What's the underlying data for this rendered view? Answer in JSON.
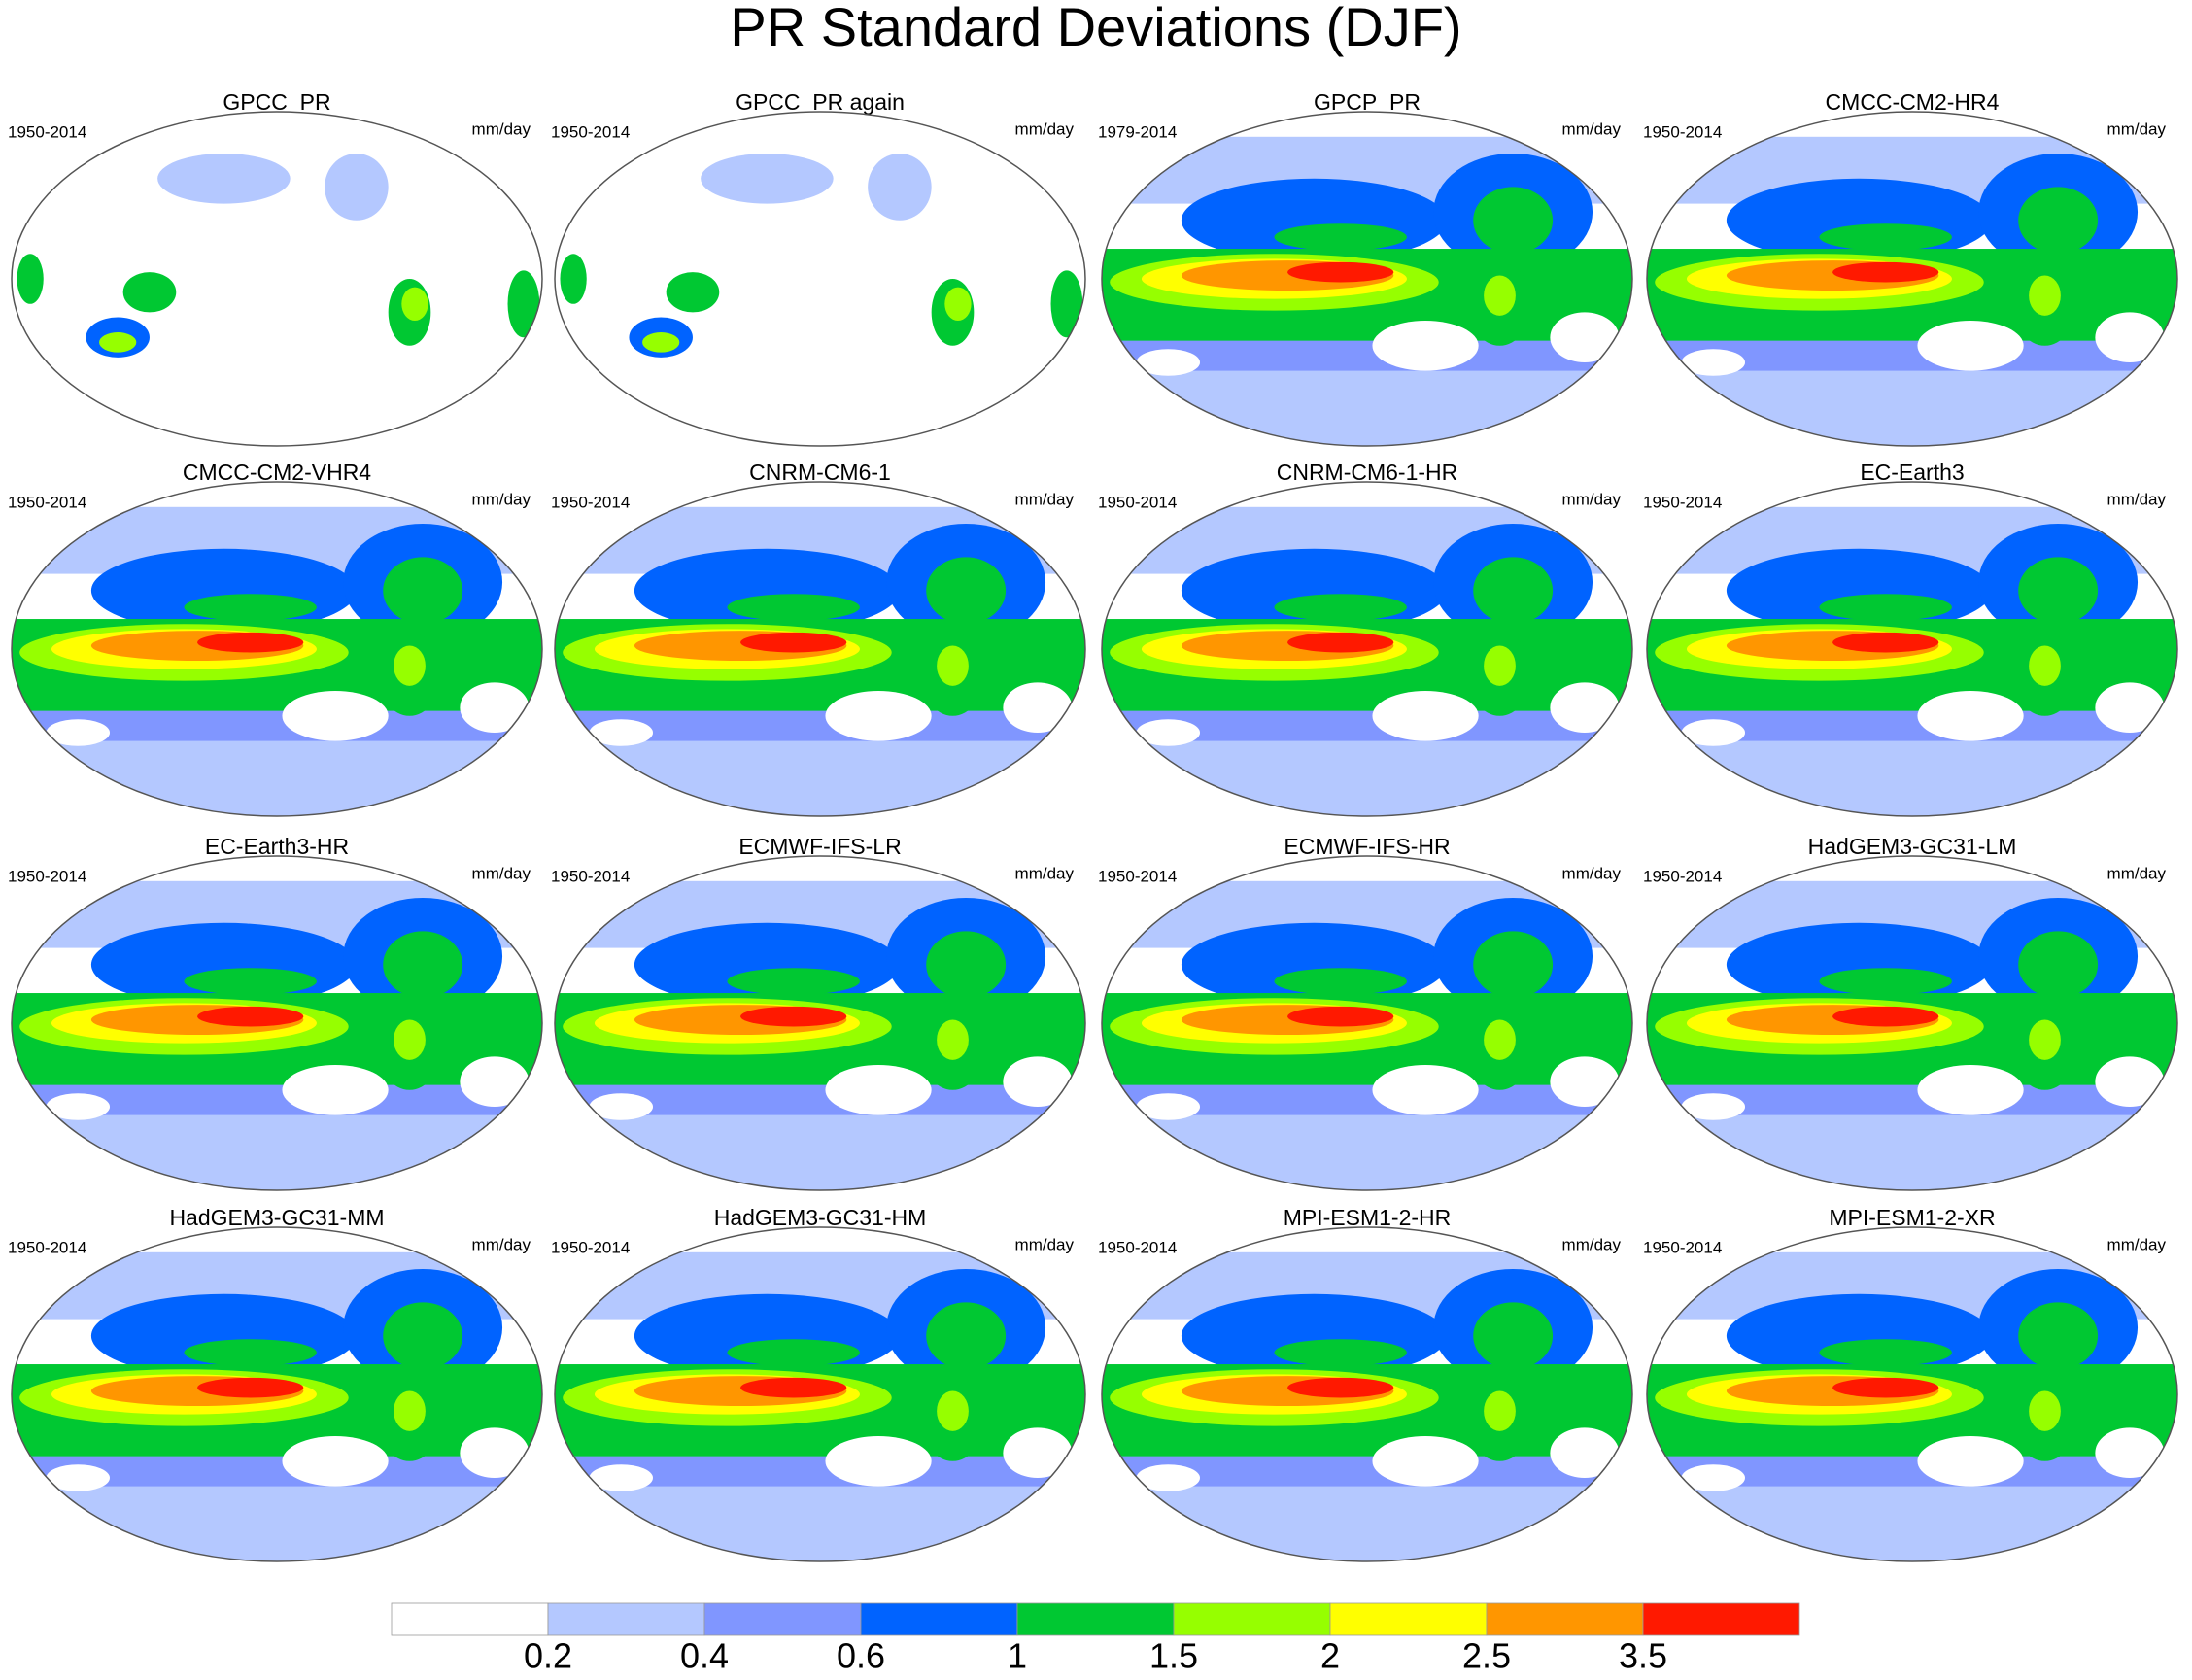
{
  "title": "PR Standard Deviations (DJF)",
  "panels": [
    {
      "title": "GPCC_PR",
      "period": "1950-2014",
      "units": "mm/day"
    },
    {
      "title": "GPCC_PR again",
      "period": "1950-2014",
      "units": "mm/day"
    },
    {
      "title": "GPCP_PR",
      "period": "1979-2014",
      "units": "mm/day"
    },
    {
      "title": "CMCC-CM2-HR4",
      "period": "1950-2014",
      "units": "mm/day"
    },
    {
      "title": "CMCC-CM2-VHR4",
      "period": "1950-2014",
      "units": "mm/day"
    },
    {
      "title": "CNRM-CM6-1",
      "period": "1950-2014",
      "units": "mm/day"
    },
    {
      "title": "CNRM-CM6-1-HR",
      "period": "1950-2014",
      "units": "mm/day"
    },
    {
      "title": "EC-Earth3",
      "period": "1950-2014",
      "units": "mm/day"
    },
    {
      "title": "EC-Earth3-HR",
      "period": "1950-2014",
      "units": "mm/day"
    },
    {
      "title": "ECMWF-IFS-LR",
      "period": "1950-2014",
      "units": "mm/day"
    },
    {
      "title": "ECMWF-IFS-HR",
      "period": "1950-2014",
      "units": "mm/day"
    },
    {
      "title": "HadGEM3-GC31-LM",
      "period": "1950-2014",
      "units": "mm/day"
    },
    {
      "title": "HadGEM3-GC31-MM",
      "period": "1950-2014",
      "units": "mm/day"
    },
    {
      "title": "HadGEM3-GC31-HM",
      "period": "1950-2014",
      "units": "mm/day"
    },
    {
      "title": "MPI-ESM1-2-HR",
      "period": "1950-2014",
      "units": "mm/day"
    },
    {
      "title": "MPI-ESM1-2-XR",
      "period": "1950-2014",
      "units": "mm/day"
    }
  ],
  "colorbar": {
    "colors": [
      "#ffffff",
      "#b4c8ff",
      "#8096ff",
      "#0063ff",
      "#00c832",
      "#96ff00",
      "#ffff00",
      "#ff9600",
      "#ff1900"
    ],
    "labels": [
      0.2,
      0.4,
      0.6,
      1,
      1.5,
      2,
      2.5,
      3.5
    ]
  }
}
